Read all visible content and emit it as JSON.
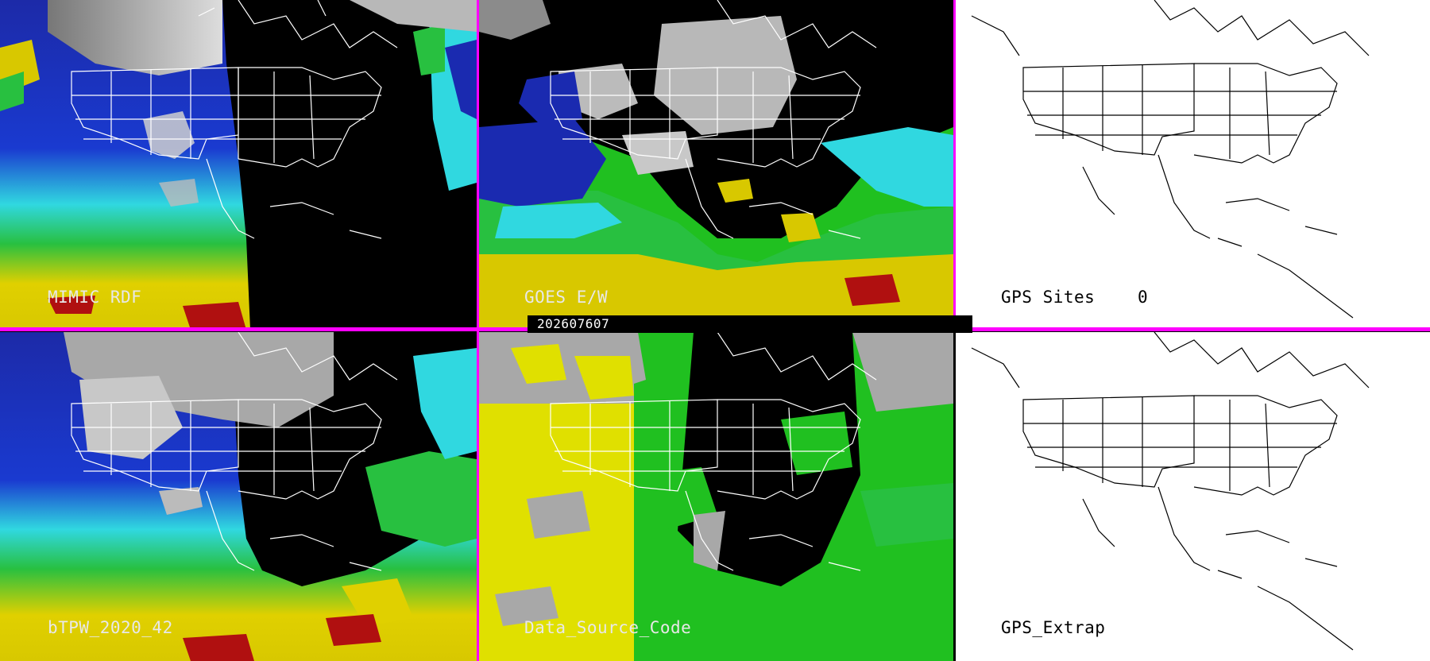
{
  "panels": {
    "mimic_rdf": {
      "label": "MIMIC RDF"
    },
    "goes_ew": {
      "label": "GOES E/W"
    },
    "gps_sites": {
      "label": "GPS Sites",
      "count": "0"
    },
    "btpw": {
      "label": "bTPW_2020_42"
    },
    "data_source_code": {
      "label": "Data_Source_Code"
    },
    "gps_extrap": {
      "label": "GPS_Extrap"
    }
  },
  "timestamp": "202607607",
  "colors": {
    "divider": "#ff00ff",
    "tpw_blue": "#1a2ab0",
    "tpw_cyan": "#30e0e8",
    "tpw_green": "#20c020",
    "tpw_yellow": "#e0d000",
    "tpw_red": "#b01010",
    "source_yellow": "#e0e000",
    "source_green": "#20c020",
    "source_gray": "#a8a8a8"
  }
}
